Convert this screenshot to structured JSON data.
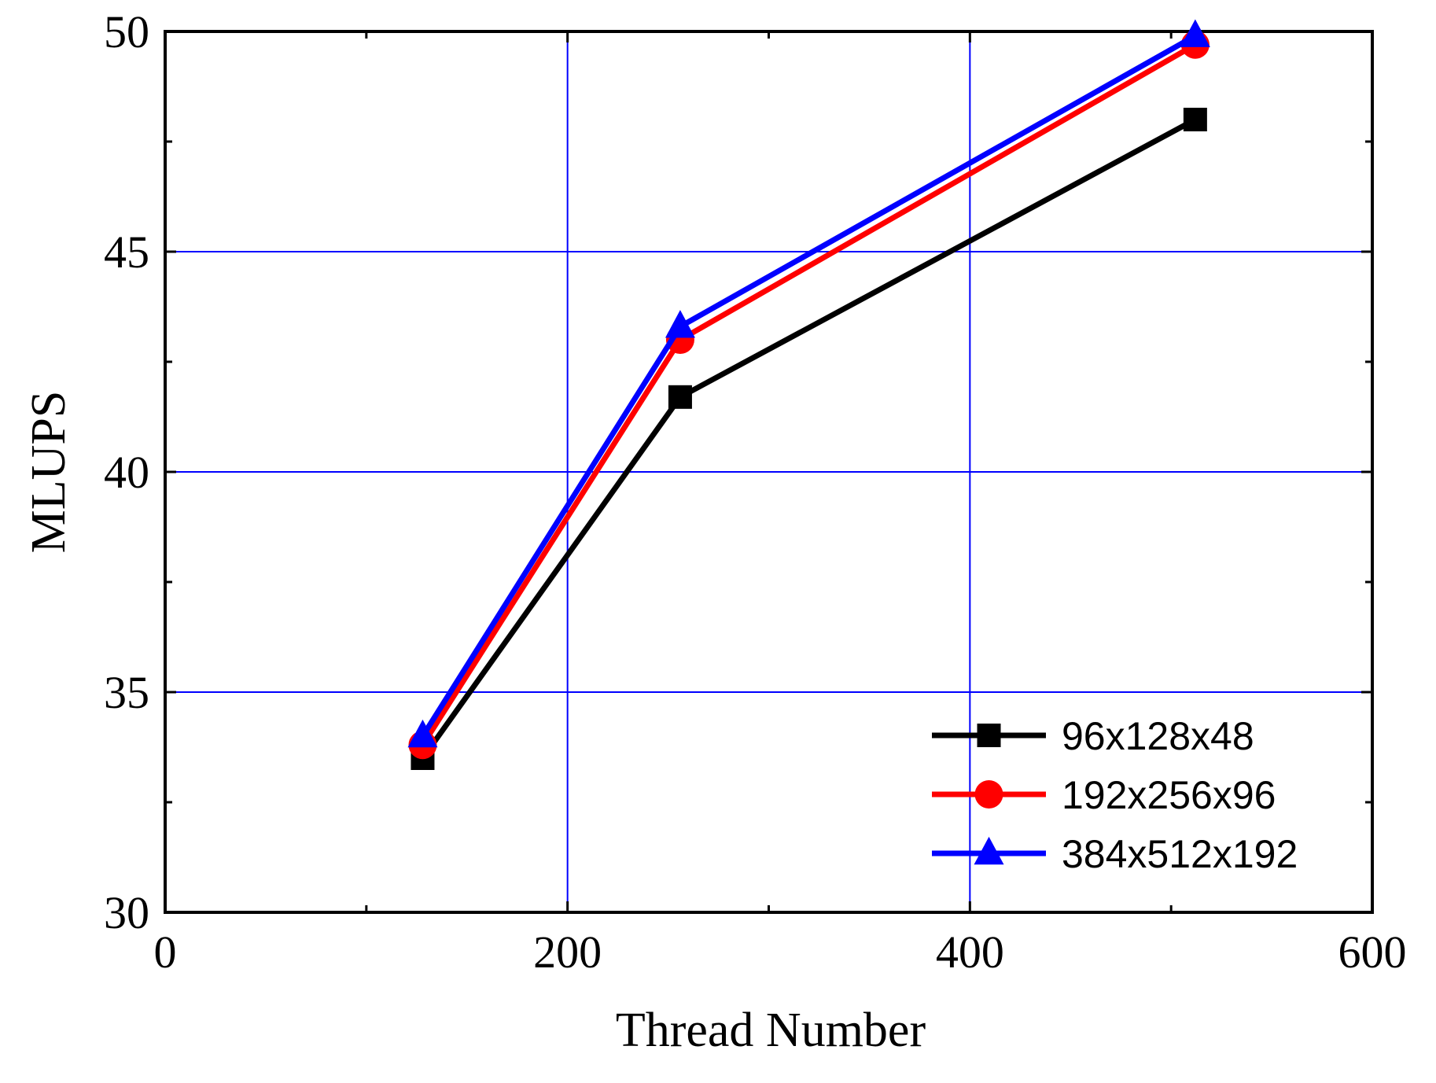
{
  "chart_data": {
    "type": "line",
    "xlabel": "Thread Number",
    "ylabel": "MLUPS",
    "xlim": [
      0,
      600
    ],
    "ylim": [
      30,
      50
    ],
    "xticks": [
      0,
      200,
      400,
      600
    ],
    "yticks": [
      30,
      35,
      40,
      45,
      50
    ],
    "x_minor_step": 100,
    "y_minor_step": 2.5,
    "grid": true,
    "grid_color": "#0000ff",
    "legend_position": "bottom-right",
    "series": [
      {
        "name": "96x128x48",
        "color": "#000000",
        "marker": "square",
        "x": [
          128,
          256,
          512
        ],
        "y": [
          33.5,
          41.7,
          48.0
        ]
      },
      {
        "name": "192x256x96",
        "color": "#ff0000",
        "marker": "circle",
        "x": [
          128,
          256,
          512
        ],
        "y": [
          33.8,
          43.0,
          49.7
        ]
      },
      {
        "name": "384x512x192",
        "color": "#0000ff",
        "marker": "triangle",
        "x": [
          128,
          256,
          512
        ],
        "y": [
          34.0,
          43.3,
          49.9
        ]
      }
    ]
  }
}
